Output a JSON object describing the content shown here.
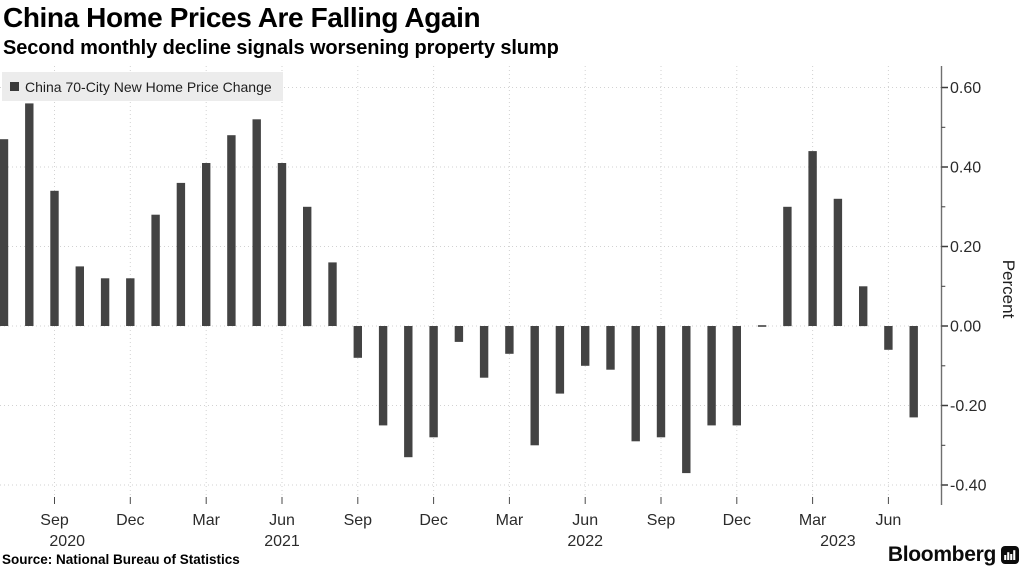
{
  "header": {
    "title": "China Home Prices Are Falling Again",
    "subtitle": "Second monthly decline signals worsening property slump"
  },
  "legend": {
    "label": "China 70-City New Home Price Change"
  },
  "footer": {
    "source": "Source: National Bureau of Statistics",
    "brand": "Bloomberg"
  },
  "chart_data": {
    "type": "bar",
    "title": "China Home Prices Are Falling Again",
    "subtitle": "Second monthly decline signals worsening property slump",
    "series_name": "China 70-City New Home Price Change",
    "unit": "percent, month-on-month change",
    "x": [
      "Jul 2020",
      "Aug 2020",
      "Sep 2020",
      "Oct 2020",
      "Nov 2020",
      "Dec 2020",
      "Jan 2021",
      "Feb 2021",
      "Mar 2021",
      "Apr 2021",
      "May 2021",
      "Jun 2021",
      "Jul 2021",
      "Aug 2021",
      "Sep 2021",
      "Oct 2021",
      "Nov 2021",
      "Dec 2021",
      "Jan 2022",
      "Feb 2022",
      "Mar 2022",
      "Apr 2022",
      "May 2022",
      "Jun 2022",
      "Jul 2022",
      "Aug 2022",
      "Sep 2022",
      "Oct 2022",
      "Nov 2022",
      "Dec 2022",
      "Jan 2023",
      "Feb 2023",
      "Mar 2023",
      "Apr 2023",
      "May 2023",
      "Jun 2023",
      "Jul 2023"
    ],
    "values": [
      0.47,
      0.56,
      0.34,
      0.15,
      0.12,
      0.12,
      0.28,
      0.36,
      0.41,
      0.48,
      0.52,
      0.41,
      0.3,
      0.16,
      -0.08,
      -0.25,
      -0.33,
      -0.28,
      -0.04,
      -0.13,
      -0.07,
      -0.3,
      -0.17,
      -0.1,
      -0.11,
      -0.29,
      -0.28,
      -0.37,
      -0.25,
      -0.25,
      0.0,
      0.3,
      0.44,
      0.32,
      0.1,
      -0.06,
      -0.23
    ],
    "ylabel": "Percent",
    "ylim": [
      -0.45,
      0.65
    ],
    "yticks_major": [
      0.6,
      0.4,
      0.2,
      0,
      -0.2,
      -0.4
    ],
    "yticks_minor": [
      0.5,
      0.3,
      0.1,
      -0.1,
      -0.3
    ],
    "xticks": [
      {
        "index": 2,
        "label": "Sep"
      },
      {
        "index": 5,
        "label": "Dec"
      },
      {
        "index": 8,
        "label": "Mar"
      },
      {
        "index": 11,
        "label": "Jun"
      },
      {
        "index": 14,
        "label": "Sep"
      },
      {
        "index": 17,
        "label": "Dec"
      },
      {
        "index": 20,
        "label": "Mar"
      },
      {
        "index": 23,
        "label": "Jun"
      },
      {
        "index": 26,
        "label": "Sep"
      },
      {
        "index": 29,
        "label": "Dec"
      },
      {
        "index": 32,
        "label": "Mar"
      },
      {
        "index": 35,
        "label": "Jun"
      }
    ],
    "year_labels": [
      {
        "index": 2.5,
        "label": "2020"
      },
      {
        "index": 11,
        "label": "2021"
      },
      {
        "index": 23,
        "label": "2022"
      },
      {
        "index": 33,
        "label": "2023"
      }
    ],
    "grid": "dotted horizontal lines at major y-ticks, dotted vertical lines at quarterly x-ticks",
    "legend_position": "top-left inside plot",
    "axis_side": "right",
    "bar_color": "#434343",
    "gridline_color": "#d2d2d2",
    "axis_color": "#6f6f6f",
    "tick_label_color": "#2b2b2b"
  }
}
